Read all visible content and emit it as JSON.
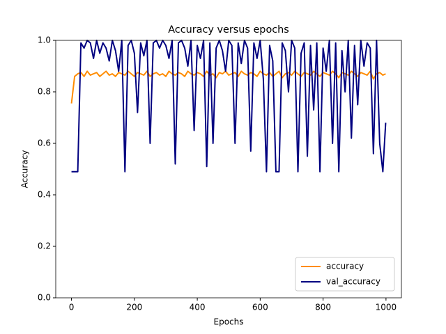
{
  "chart_data": {
    "type": "line",
    "title": "Accuracy versus epochs",
    "x_label": "Epochs",
    "y_label": "Accuracy",
    "x": [
      0,
      10,
      20,
      30,
      40,
      50,
      60,
      70,
      80,
      90,
      100,
      110,
      120,
      130,
      140,
      150,
      160,
      170,
      180,
      190,
      200,
      210,
      220,
      230,
      240,
      250,
      260,
      270,
      280,
      290,
      300,
      310,
      320,
      330,
      340,
      350,
      360,
      370,
      380,
      390,
      400,
      410,
      420,
      430,
      440,
      450,
      460,
      470,
      480,
      490,
      500,
      510,
      520,
      530,
      540,
      550,
      560,
      570,
      580,
      590,
      600,
      610,
      620,
      630,
      640,
      650,
      660,
      670,
      680,
      690,
      700,
      710,
      720,
      730,
      740,
      750,
      760,
      770,
      780,
      790,
      800,
      810,
      820,
      830,
      840,
      850,
      860,
      870,
      880,
      890,
      900,
      910,
      920,
      930,
      940,
      950,
      960,
      970,
      980,
      990,
      999
    ],
    "series": [
      {
        "name": "accuracy",
        "color": "#ff8c00",
        "values": [
          0.755,
          0.86,
          0.87,
          0.875,
          0.86,
          0.88,
          0.865,
          0.87,
          0.875,
          0.86,
          0.87,
          0.88,
          0.865,
          0.87,
          0.86,
          0.875,
          0.87,
          0.865,
          0.88,
          0.87,
          0.86,
          0.875,
          0.87,
          0.865,
          0.88,
          0.86,
          0.87,
          0.875,
          0.865,
          0.87,
          0.86,
          0.88,
          0.87,
          0.865,
          0.875,
          0.87,
          0.86,
          0.88,
          0.87,
          0.865,
          0.875,
          0.87,
          0.86,
          0.88,
          0.865,
          0.87,
          0.855,
          0.875,
          0.87,
          0.88,
          0.865,
          0.87,
          0.875,
          0.86,
          0.88,
          0.87,
          0.865,
          0.875,
          0.87,
          0.86,
          0.88,
          0.87,
          0.865,
          0.875,
          0.86,
          0.87,
          0.88,
          0.855,
          0.87,
          0.875,
          0.865,
          0.88,
          0.87,
          0.86,
          0.875,
          0.87,
          0.865,
          0.88,
          0.87,
          0.86,
          0.875,
          0.87,
          0.865,
          0.88,
          0.87,
          0.855,
          0.875,
          0.87,
          0.865,
          0.88,
          0.87,
          0.86,
          0.875,
          0.87,
          0.865,
          0.88,
          0.85,
          0.87,
          0.875,
          0.865,
          0.87
        ]
      },
      {
        "name": "val_accuracy",
        "color": "#000080",
        "values": [
          0.49,
          0.49,
          0.49,
          0.99,
          0.97,
          1.0,
          0.99,
          0.93,
          1.0,
          0.95,
          0.99,
          0.97,
          0.92,
          1.0,
          0.96,
          0.88,
          1.0,
          0.49,
          0.98,
          1.0,
          0.95,
          0.72,
          0.99,
          0.94,
          1.0,
          0.6,
          0.99,
          1.0,
          0.97,
          1.0,
          0.98,
          0.93,
          1.0,
          0.52,
          0.99,
          1.0,
          0.97,
          0.9,
          1.0,
          0.65,
          0.98,
          0.93,
          1.0,
          0.51,
          0.99,
          0.6,
          0.97,
          1.0,
          0.96,
          0.88,
          1.0,
          0.98,
          0.6,
          0.99,
          0.91,
          1.0,
          0.97,
          0.57,
          0.99,
          0.93,
          1.0,
          0.85,
          0.49,
          0.98,
          0.92,
          0.49,
          0.49,
          0.99,
          0.96,
          0.8,
          1.0,
          0.97,
          0.49,
          0.95,
          0.99,
          0.55,
          0.98,
          0.73,
          0.99,
          0.49,
          0.97,
          0.88,
          1.0,
          0.6,
          0.99,
          0.49,
          0.96,
          0.8,
          1.0,
          0.62,
          0.98,
          0.75,
          1.0,
          0.9,
          0.99,
          0.97,
          0.56,
          1.0,
          0.6,
          0.49,
          0.68
        ]
      }
    ],
    "xlim": [
      -50,
      1049
    ],
    "ylim": [
      0,
      1
    ],
    "xticks": [
      0,
      200,
      400,
      600,
      800,
      1000
    ],
    "yticks": [
      {
        "value": 0,
        "label": "0.0"
      },
      {
        "value": 0.2,
        "label": "0.2"
      },
      {
        "value": 0.4,
        "label": "0.4"
      },
      {
        "value": 0.6,
        "label": "0.6"
      },
      {
        "value": 0.8,
        "label": "0.8"
      },
      {
        "value": 1,
        "label": "1.0"
      }
    ],
    "legend": "lower right"
  }
}
